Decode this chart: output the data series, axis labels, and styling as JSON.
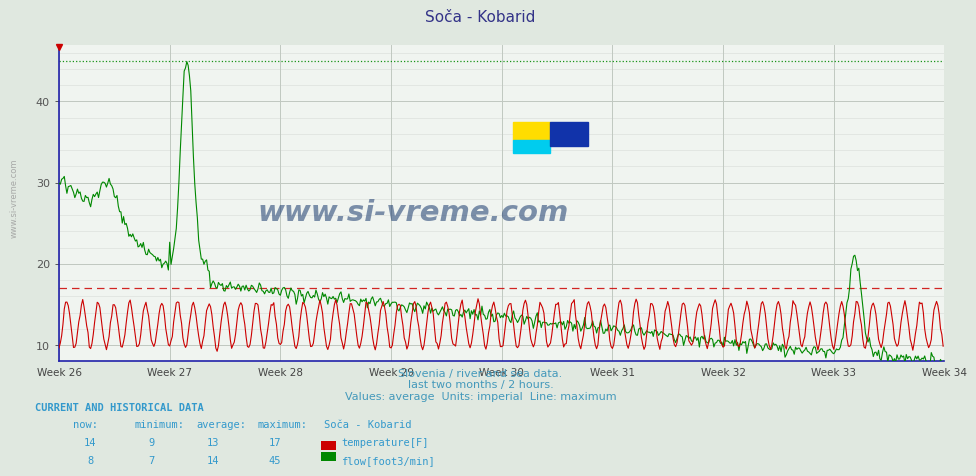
{
  "title": "Soča - Kobarid",
  "bg_color": "#e0e8e0",
  "plot_bg_color": "#f0f4f0",
  "grid_color_major": "#c0c8c0",
  "grid_color_minor": "#d8dcd8",
  "x_ticks": [
    "Week 26",
    "Week 27",
    "Week 28",
    "Week 29",
    "Week 30",
    "Week 31",
    "Week 32",
    "Week 33",
    "Week 34"
  ],
  "x_tick_positions": [
    0,
    84,
    168,
    252,
    336,
    420,
    504,
    588,
    672
  ],
  "ylim": [
    8,
    47
  ],
  "yticks": [
    10,
    20,
    30,
    40
  ],
  "temp_max_line": 17,
  "flow_max_line": 45,
  "temp_color": "#cc0000",
  "flow_color": "#008800",
  "subtitle1": "Slovenia / river and sea data.",
  "subtitle2": "last two months / 2 hours.",
  "subtitle3": "Values: average  Units: imperial  Line: maximum",
  "subtitle_color": "#4499bb",
  "watermark": "www.si-vreme.com",
  "watermark_color": "#1a3a6e",
  "label_color": "#3399cc",
  "n_points": 672,
  "temp_now": 14,
  "temp_min": 9,
  "temp_avg": 13,
  "temp_max": 17,
  "flow_now": 8,
  "flow_min": 7,
  "flow_avg": 14,
  "flow_max": 45,
  "left_text": "www.si-vreme.com"
}
